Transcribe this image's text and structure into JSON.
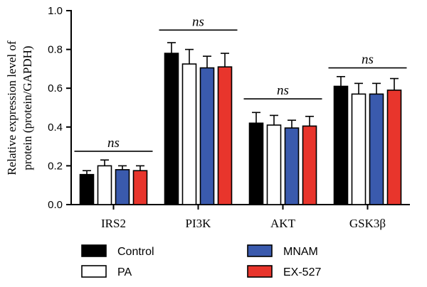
{
  "chart_data": {
    "type": "bar",
    "ylabel_line1": "Relative expression level of",
    "ylabel_line2": "protein (protein/GAPDH)",
    "ylim": [
      0,
      1.0
    ],
    "yticks": [
      "0.0",
      "0.2",
      "0.4",
      "0.6",
      "0.8",
      "1.0"
    ],
    "categories": [
      "IRS2",
      "PI3K",
      "AKT",
      "GSK3β"
    ],
    "series": [
      {
        "name": "Control",
        "color": "#000000",
        "values": [
          0.155,
          0.78,
          0.42,
          0.61
        ],
        "errors": [
          0.02,
          0.055,
          0.055,
          0.05
        ]
      },
      {
        "name": "PA",
        "color": "#ffffff",
        "values": [
          0.2,
          0.725,
          0.41,
          0.57
        ],
        "errors": [
          0.03,
          0.075,
          0.05,
          0.055
        ]
      },
      {
        "name": "MNAM",
        "color": "#3a5aad",
        "values": [
          0.18,
          0.705,
          0.395,
          0.57
        ],
        "errors": [
          0.02,
          0.06,
          0.04,
          0.055
        ]
      },
      {
        "name": "EX-527",
        "color": "#e8352c",
        "values": [
          0.175,
          0.71,
          0.405,
          0.59
        ],
        "errors": [
          0.025,
          0.07,
          0.05,
          0.06
        ]
      }
    ],
    "annotations": [
      {
        "category_index": 0,
        "text": "ns",
        "level": 0.275
      },
      {
        "category_index": 1,
        "text": "ns",
        "level": 0.9
      },
      {
        "category_index": 2,
        "text": "ns",
        "level": 0.545
      },
      {
        "category_index": 3,
        "text": "ns",
        "level": 0.705
      }
    ],
    "grid": false,
    "legend_position": "bottom"
  }
}
